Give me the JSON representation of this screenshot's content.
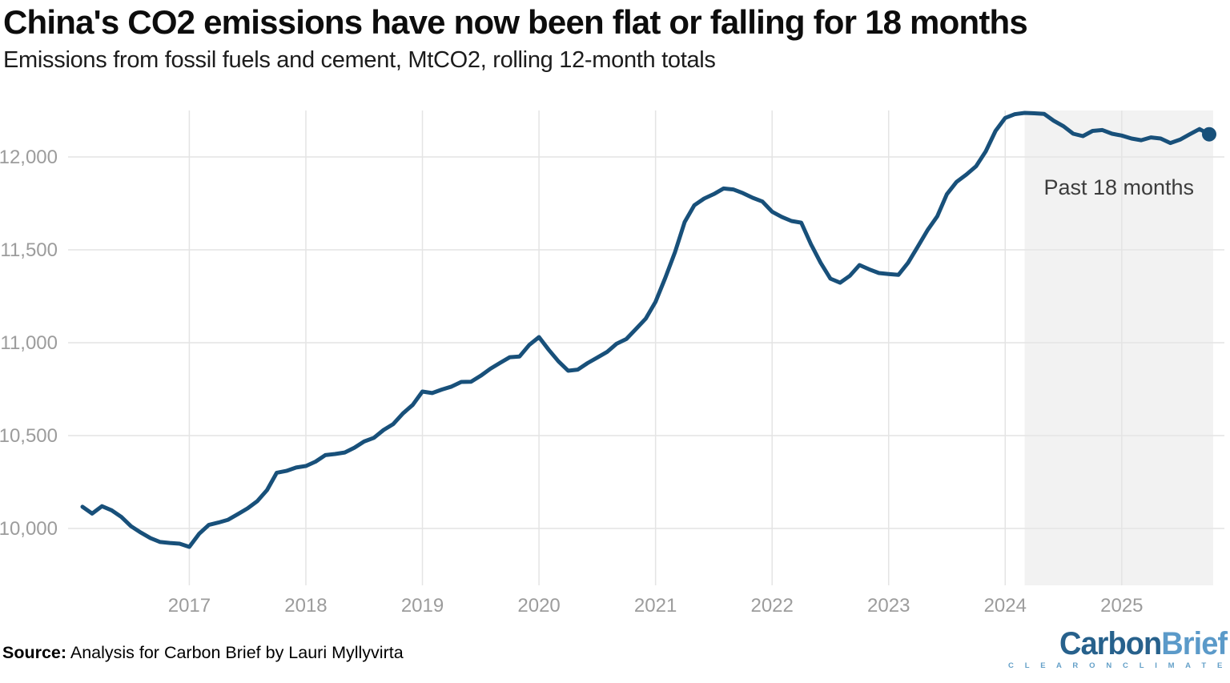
{
  "header": {
    "title": "China's CO2 emissions have now been flat or falling for 18 months",
    "subtitle": "Emissions from fossil fuels and cement, MtCO2, rolling 12-month totals"
  },
  "footer": {
    "source_label": "Source:",
    "source_text": " Analysis for Carbon Brief by Lauri Myllyvirta",
    "logo": {
      "part1": "Carbon",
      "part2": "Brief",
      "tagline": "C L E A R   O N   C L I M A T E"
    }
  },
  "colors": {
    "line": "#18507a",
    "dot": "#18507a",
    "grid": "#e4e4e4",
    "highlight_fill": "#f2f2f2",
    "tick_label": "#9c9c9c",
    "annotation": "#3d3d3d"
  },
  "chart_data": {
    "type": "line",
    "title": "China's CO2 emissions have now been flat or falling for 18 months",
    "subtitle": "Emissions from fossil fuels and cement, MtCO2, rolling 12-month totals",
    "series_name": "China CO2 emissions, rolling 12-month totals (MtCO2)",
    "frequency": "monthly",
    "x_start": "2016-02",
    "x_end": "2025-10",
    "values": [
      10117,
      10080,
      10120,
      10098,
      10062,
      10012,
      9978,
      9948,
      9927,
      9922,
      9918,
      9901,
      9971,
      10019,
      10032,
      10047,
      10077,
      10108,
      10147,
      10207,
      10300,
      10310,
      10328,
      10336,
      10360,
      10395,
      10401,
      10409,
      10435,
      10468,
      10488,
      10530,
      10562,
      10620,
      10665,
      10737,
      10729,
      10748,
      10764,
      10789,
      10790,
      10822,
      10860,
      10892,
      10922,
      10926,
      10988,
      11030,
      10962,
      10900,
      10849,
      10855,
      10890,
      10920,
      10950,
      10995,
      11020,
      11075,
      11130,
      11220,
      11349,
      11487,
      11650,
      11740,
      11776,
      11800,
      11830,
      11825,
      11805,
      11780,
      11760,
      11705,
      11677,
      11655,
      11646,
      11530,
      11430,
      11345,
      11323,
      11360,
      11418,
      11395,
      11375,
      11370,
      11365,
      11430,
      11517,
      11605,
      11680,
      11800,
      11866,
      11905,
      11950,
      12030,
      12140,
      12210,
      12230,
      12237,
      12235,
      12232,
      12195,
      12165,
      12125,
      12112,
      12140,
      12145,
      12125,
      12115,
      12099,
      12090,
      12105,
      12099,
      12075,
      12093,
      12122,
      12150,
      12122
    ],
    "x_ticks": [
      "2017",
      "2018",
      "2019",
      "2020",
      "2021",
      "2022",
      "2023",
      "2024",
      "2025"
    ],
    "y_ticks": [
      {
        "value": 10000,
        "label": "10,000"
      },
      {
        "value": 10500,
        "label": "10,500"
      },
      {
        "value": 11000,
        "label": "11,000"
      },
      {
        "value": 11500,
        "label": "11,500"
      },
      {
        "value": 12000,
        "label": "12,000"
      }
    ],
    "ylim": [
      9690,
      12250
    ],
    "grid": true,
    "highlight": {
      "start": "2024-03",
      "end": "2025-10",
      "label": "Past 18 months"
    },
    "end_dot": true
  }
}
